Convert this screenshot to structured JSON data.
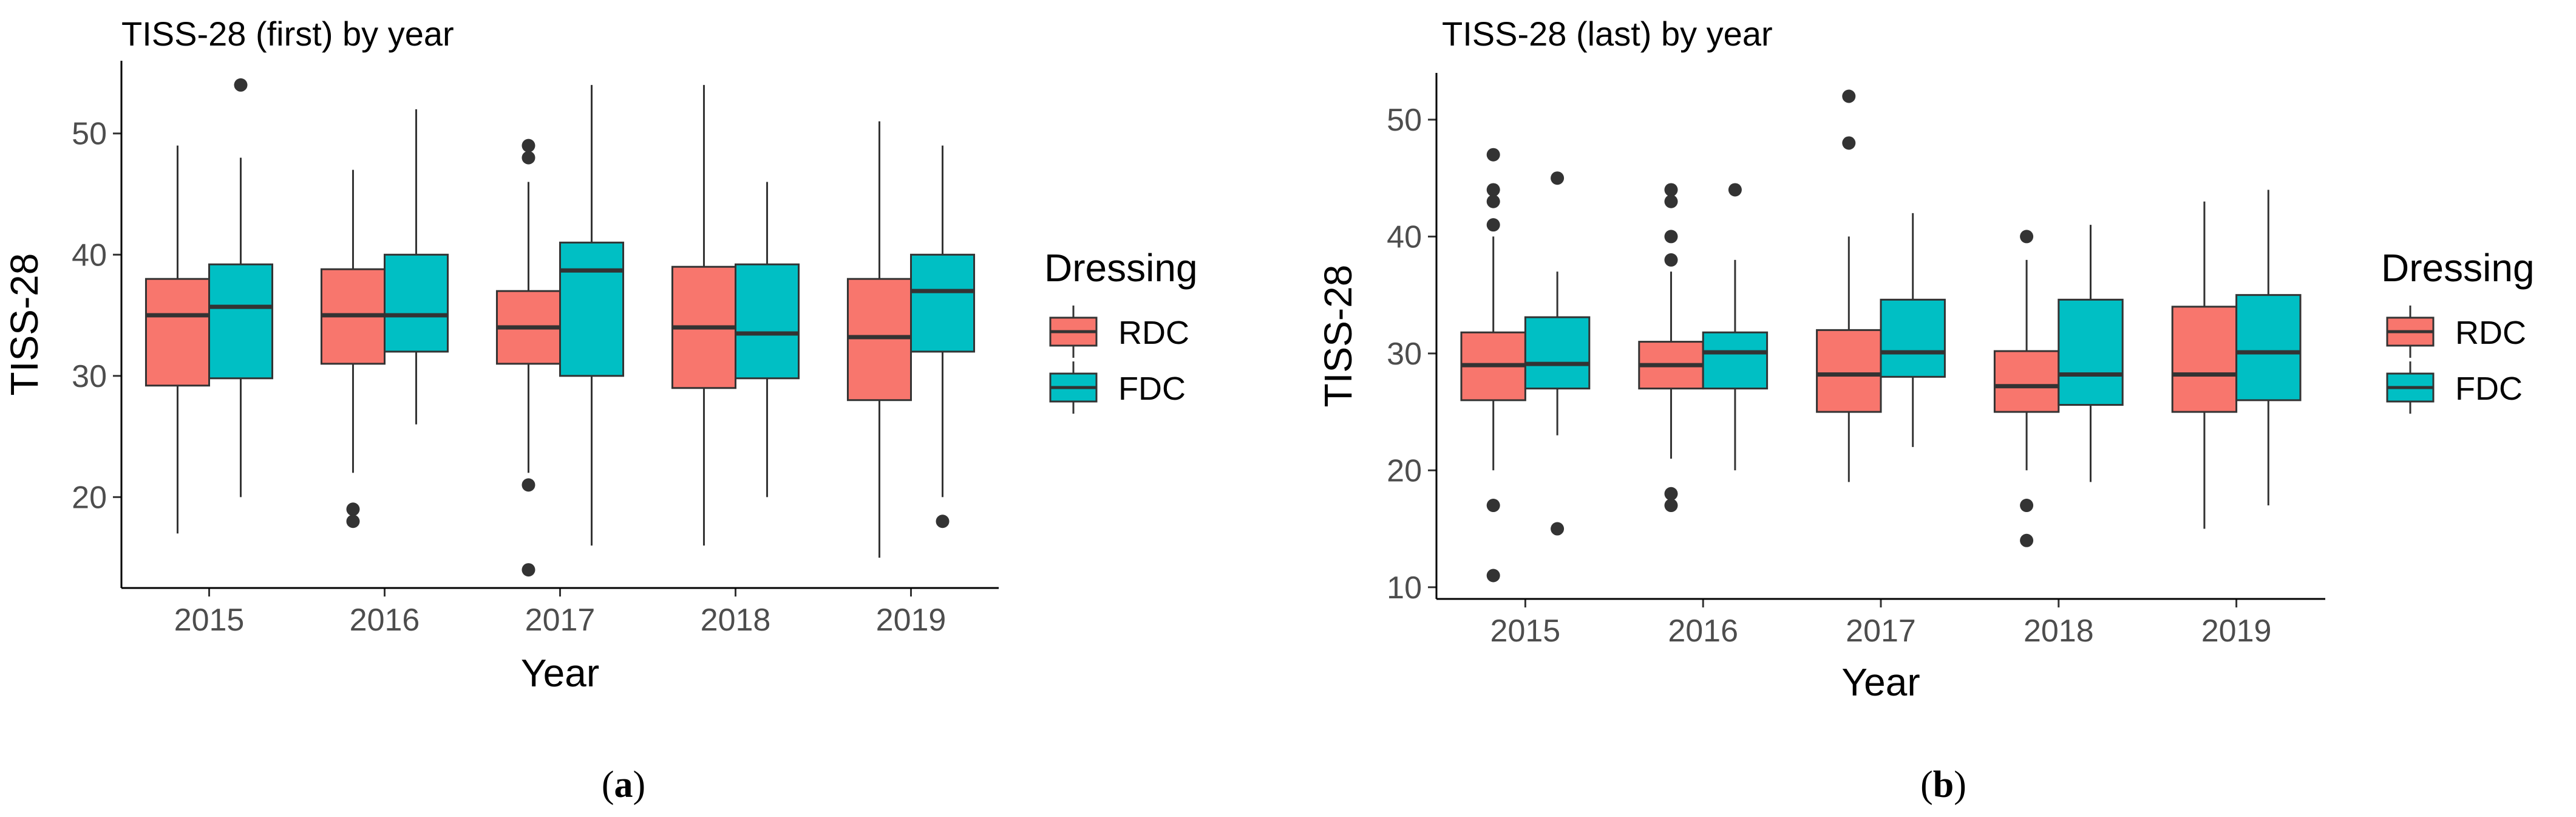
{
  "chart_data": [
    {
      "type": "boxplot",
      "title": "TISS-28 (first) by year",
      "xlabel": "Year",
      "ylabel": "TISS-28",
      "ylim": [
        12.5,
        56
      ],
      "yticks": [
        20,
        30,
        40,
        50
      ],
      "categories": [
        "2015",
        "2016",
        "2017",
        "2018",
        "2019"
      ],
      "legend": {
        "title": "Dressing",
        "entries": [
          "RDC",
          "FDC"
        ],
        "position": "right"
      },
      "caption": "a",
      "series": [
        {
          "name": "RDC",
          "color": "#F8766D",
          "boxes": [
            {
              "min": 17,
              "q1": 29.2,
              "median": 35,
              "q3": 38,
              "max": 49,
              "outliers": []
            },
            {
              "min": 22,
              "q1": 31,
              "median": 35,
              "q3": 38.8,
              "max": 47,
              "outliers": [
                19,
                18
              ]
            },
            {
              "min": 22,
              "q1": 31,
              "median": 34,
              "q3": 37,
              "max": 46,
              "outliers": [
                49,
                48,
                21,
                14
              ]
            },
            {
              "min": 16,
              "q1": 29,
              "median": 34,
              "q3": 39,
              "max": 54,
              "outliers": []
            },
            {
              "min": 15,
              "q1": 28,
              "median": 33.2,
              "q3": 38,
              "max": 51,
              "outliers": []
            }
          ]
        },
        {
          "name": "FDC",
          "color": "#00BFC4",
          "boxes": [
            {
              "min": 20,
              "q1": 29.8,
              "median": 35.7,
              "q3": 39.2,
              "max": 48,
              "outliers": [
                54
              ]
            },
            {
              "min": 26,
              "q1": 32,
              "median": 35,
              "q3": 40,
              "max": 52,
              "outliers": []
            },
            {
              "min": 16,
              "q1": 30,
              "median": 38.7,
              "q3": 41,
              "max": 54,
              "outliers": []
            },
            {
              "min": 20,
              "q1": 29.8,
              "median": 33.5,
              "q3": 39.2,
              "max": 46,
              "outliers": []
            },
            {
              "min": 20,
              "q1": 32,
              "median": 37,
              "q3": 40,
              "max": 49,
              "outliers": [
                18
              ]
            }
          ]
        }
      ]
    },
    {
      "type": "boxplot",
      "title": "TISS-28 (last) by year",
      "xlabel": "Year",
      "ylabel": "TISS-28",
      "ylim": [
        9,
        54
      ],
      "yticks": [
        10,
        20,
        30,
        40,
        50
      ],
      "categories": [
        "2015",
        "2016",
        "2017",
        "2018",
        "2019"
      ],
      "legend": {
        "title": "Dressing",
        "entries": [
          "RDC",
          "FDC"
        ],
        "position": "right"
      },
      "caption": "b",
      "series": [
        {
          "name": "RDC",
          "color": "#F8766D",
          "boxes": [
            {
              "min": 20,
              "q1": 26,
              "median": 29,
              "q3": 31.8,
              "max": 40,
              "outliers": [
                47,
                44,
                43,
                41,
                17,
                11
              ]
            },
            {
              "min": 21,
              "q1": 27,
              "median": 29,
              "q3": 31,
              "max": 37,
              "outliers": [
                44,
                43,
                40,
                38,
                18,
                17
              ]
            },
            {
              "min": 19,
              "q1": 25,
              "median": 28.2,
              "q3": 32,
              "max": 40,
              "outliers": [
                52,
                48
              ]
            },
            {
              "min": 20,
              "q1": 25,
              "median": 27.2,
              "q3": 30.2,
              "max": 38,
              "outliers": [
                40,
                17,
                14
              ]
            },
            {
              "min": 15,
              "q1": 25,
              "median": 28.2,
              "q3": 34,
              "max": 43,
              "outliers": []
            }
          ]
        },
        {
          "name": "FDC",
          "color": "#00BFC4",
          "boxes": [
            {
              "min": 23,
              "q1": 27,
              "median": 29.1,
              "q3": 33.1,
              "max": 37,
              "outliers": [
                45,
                15
              ]
            },
            {
              "min": 20,
              "q1": 27,
              "median": 30.1,
              "q3": 31.8,
              "max": 38,
              "outliers": [
                44
              ]
            },
            {
              "min": 22,
              "q1": 28,
              "median": 30.1,
              "q3": 34.6,
              "max": 42,
              "outliers": []
            },
            {
              "min": 19,
              "q1": 25.6,
              "median": 28.2,
              "q3": 34.6,
              "max": 41,
              "outliers": []
            },
            {
              "min": 17,
              "q1": 26,
              "median": 30.1,
              "q3": 35,
              "max": 44,
              "outliers": []
            }
          ]
        }
      ]
    }
  ]
}
